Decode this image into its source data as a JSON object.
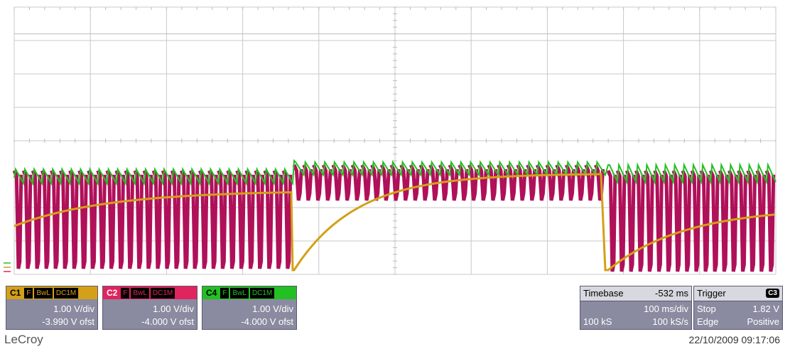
{
  "channels": [
    {
      "name": "C1",
      "tags": [
        "F",
        "BwL",
        "DC1M"
      ],
      "vdiv": "1.00 V/div",
      "offset": "-3.990 V ofst",
      "color": "#d4a017"
    },
    {
      "name": "C2",
      "tags": [
        "F",
        "BwL",
        "DC1M"
      ],
      "vdiv": "1.00 V/div",
      "offset": "-4.000 V ofst",
      "color": "#e0245e"
    },
    {
      "name": "C4",
      "tags": [
        "F",
        "BwL",
        "DC1M"
      ],
      "vdiv": "1.00 V/div",
      "offset": "-4.000 V ofst",
      "color": "#22c022"
    }
  ],
  "timebase": {
    "label": "Timebase",
    "delay": "-532 ms",
    "tdiv": "100 ms/div",
    "samples": "100 kS",
    "rate": "100 kS/s"
  },
  "trigger": {
    "label": "Trigger",
    "source": "C3",
    "mode": "Stop",
    "level": "1.82 V",
    "type": "Edge",
    "slope": "Positive"
  },
  "brand": "LeCroy",
  "datetime": "22/10/2009 09:17:06",
  "trace_colors": {
    "c1": "#d4a017",
    "c2": "#b0105a",
    "c4": "#22c022"
  }
}
